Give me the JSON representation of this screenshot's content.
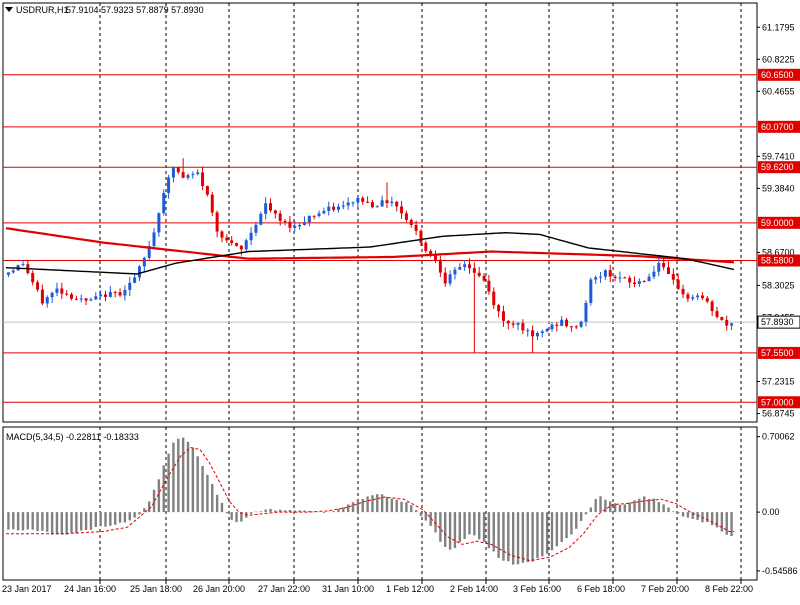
{
  "header": {
    "symbol": "USDRUR,H1",
    "ohlc": "57.9104 57.9323 57.8879 57.8930"
  },
  "chart_data": {
    "type": "candlestick",
    "symbol": "USDRUR",
    "timeframe": "H1",
    "ohlc_last": {
      "open": 57.9104,
      "high": 57.9323,
      "low": 57.8879,
      "close": 57.893
    },
    "price_axis": {
      "ylim": [
        56.78,
        61.45
      ],
      "ticks": [
        "61.1795",
        "60.8225",
        "60.4655",
        "59.7410",
        "59.3840",
        "58.6700",
        "58.3025",
        "57.9455",
        "57.2315",
        "56.8745"
      ]
    },
    "level_lines": [
      {
        "label": "60.6500",
        "value": 60.65
      },
      {
        "label": "60.0700",
        "value": 60.07
      },
      {
        "label": "59.6200",
        "value": 59.62
      },
      {
        "label": "59.0000",
        "value": 59.0
      },
      {
        "label": "58.5800",
        "value": 58.58
      },
      {
        "label": "57.5500",
        "value": 57.55
      },
      {
        "label": "57.0000",
        "value": 57.0
      }
    ],
    "current_price_label": "57.8930",
    "current_price": 57.893,
    "time_labels": [
      "23 Jan 2017",
      "24 Jan 16:00",
      "25 Jan 18:00",
      "26 Jan 20:00",
      "27 Jan 22:00",
      "31 Jan 10:00",
      "1 Feb 12:00",
      "2 Feb 14:00",
      "3 Feb 16:00",
      "6 Feb 18:00",
      "7 Feb 20:00",
      "8 Feb 22:00"
    ],
    "price_path": [
      [
        0,
        58.42
      ],
      [
        4,
        58.55
      ],
      [
        8,
        58.12
      ],
      [
        11,
        58.26
      ],
      [
        14,
        58.18
      ],
      [
        17,
        58.12
      ],
      [
        21,
        58.2
      ],
      [
        24,
        58.22
      ],
      [
        27,
        58.38
      ],
      [
        29,
        58.6
      ],
      [
        31,
        58.9
      ],
      [
        33,
        59.35
      ],
      [
        35,
        59.62
      ],
      [
        37,
        59.5
      ],
      [
        40,
        59.55
      ],
      [
        42,
        59.3
      ],
      [
        44,
        58.92
      ],
      [
        47,
        58.75
      ],
      [
        49,
        58.7
      ],
      [
        51,
        58.9
      ],
      [
        54,
        59.2
      ],
      [
        57,
        59.02
      ],
      [
        60,
        58.95
      ],
      [
        63,
        59.07
      ],
      [
        67,
        59.15
      ],
      [
        70,
        59.18
      ],
      [
        73,
        59.27
      ],
      [
        76,
        59.2
      ],
      [
        80,
        59.25
      ],
      [
        83,
        59.05
      ],
      [
        85,
        58.9
      ],
      [
        87,
        58.7
      ],
      [
        89,
        58.6
      ],
      [
        91,
        58.35
      ],
      [
        93,
        58.45
      ],
      [
        95,
        58.55
      ],
      [
        97,
        58.45
      ],
      [
        99,
        58.35
      ],
      [
        101,
        58.1
      ],
      [
        103,
        57.9
      ],
      [
        106,
        57.88
      ],
      [
        109,
        57.72
      ],
      [
        112,
        57.82
      ],
      [
        115,
        57.9
      ],
      [
        117,
        57.82
      ],
      [
        119,
        57.9
      ],
      [
        121,
        58.35
      ],
      [
        124,
        58.45
      ],
      [
        127,
        58.38
      ],
      [
        130,
        58.32
      ],
      [
        133,
        58.4
      ],
      [
        135,
        58.55
      ],
      [
        137,
        58.4
      ],
      [
        139,
        58.28
      ],
      [
        141,
        58.15
      ],
      [
        143,
        58.2
      ],
      [
        145,
        58.1
      ],
      [
        147,
        57.95
      ],
      [
        149,
        57.85
      ],
      [
        150,
        57.89
      ]
    ],
    "total_bars": 150,
    "spikes": [
      {
        "bar": 96,
        "low": 57.55
      },
      {
        "bar": 108,
        "low": 57.55
      },
      {
        "bar": 36,
        "high": 59.72
      },
      {
        "bar": 78,
        "high": 59.45
      }
    ],
    "indicators": [
      {
        "name": "slow-ma",
        "color": "#e00000",
        "path": [
          [
            0,
            58.94
          ],
          [
            20,
            58.78
          ],
          [
            50,
            58.6
          ],
          [
            80,
            58.62
          ],
          [
            100,
            58.68
          ],
          [
            130,
            58.63
          ],
          [
            150,
            58.56
          ]
        ]
      },
      {
        "name": "fast-ma",
        "color": "#000000",
        "path": [
          [
            0,
            58.5
          ],
          [
            27,
            58.43
          ],
          [
            35,
            58.55
          ],
          [
            50,
            58.68
          ],
          [
            75,
            58.73
          ],
          [
            90,
            58.85
          ],
          [
            103,
            58.89
          ],
          [
            110,
            58.87
          ],
          [
            120,
            58.72
          ],
          [
            130,
            58.66
          ],
          [
            140,
            58.6
          ],
          [
            150,
            58.48
          ]
        ]
      }
    ],
    "macd": {
      "label": "MACD(5,34,5) -0.22811 -0.18333",
      "ylim": [
        -0.63,
        0.79
      ],
      "ticks": [
        "0.70062",
        "0.00",
        "-0.54586"
      ],
      "hist_path": [
        [
          0,
          -0.16
        ],
        [
          6,
          -0.17
        ],
        [
          12,
          -0.22
        ],
        [
          18,
          -0.15
        ],
        [
          24,
          -0.1
        ],
        [
          27,
          -0.04
        ],
        [
          29,
          0.05
        ],
        [
          31,
          0.25
        ],
        [
          33,
          0.5
        ],
        [
          35,
          0.68
        ],
        [
          37,
          0.7
        ],
        [
          39,
          0.55
        ],
        [
          42,
          0.3
        ],
        [
          44,
          0.12
        ],
        [
          46,
          -0.05
        ],
        [
          48,
          -0.12
        ],
        [
          50,
          -0.02
        ],
        [
          54,
          0.03
        ],
        [
          58,
          0.01
        ],
        [
          62,
          0.02
        ],
        [
          66,
          -0.01
        ],
        [
          70,
          0.06
        ],
        [
          74,
          0.14
        ],
        [
          77,
          0.18
        ],
        [
          80,
          0.12
        ],
        [
          83,
          0.08
        ],
        [
          86,
          -0.05
        ],
        [
          88,
          -0.15
        ],
        [
          90,
          -0.32
        ],
        [
          92,
          -0.37
        ],
        [
          94,
          -0.26
        ],
        [
          96,
          -0.2
        ],
        [
          98,
          -0.26
        ],
        [
          100,
          -0.35
        ],
        [
          102,
          -0.44
        ],
        [
          105,
          -0.49
        ],
        [
          108,
          -0.46
        ],
        [
          111,
          -0.4
        ],
        [
          114,
          -0.3
        ],
        [
          117,
          -0.2
        ],
        [
          120,
          0.02
        ],
        [
          122,
          0.15
        ],
        [
          124,
          0.1
        ],
        [
          126,
          0.08
        ],
        [
          128,
          0.07
        ],
        [
          131,
          0.14
        ],
        [
          134,
          0.12
        ],
        [
          137,
          0.02
        ],
        [
          140,
          -0.05
        ],
        [
          143,
          -0.08
        ],
        [
          146,
          -0.12
        ],
        [
          149,
          -0.22
        ]
      ],
      "signal_path": [
        [
          0,
          -0.2
        ],
        [
          12,
          -0.2
        ],
        [
          20,
          -0.18
        ],
        [
          25,
          -0.14
        ],
        [
          30,
          0.05
        ],
        [
          33,
          0.3
        ],
        [
          36,
          0.52
        ],
        [
          38,
          0.6
        ],
        [
          40,
          0.58
        ],
        [
          42,
          0.45
        ],
        [
          44,
          0.28
        ],
        [
          46,
          0.1
        ],
        [
          48,
          0.0
        ],
        [
          50,
          -0.03
        ],
        [
          56,
          0.0
        ],
        [
          62,
          0.0
        ],
        [
          66,
          0.01
        ],
        [
          70,
          0.04
        ],
        [
          74,
          0.1
        ],
        [
          78,
          0.14
        ],
        [
          82,
          0.12
        ],
        [
          86,
          0.02
        ],
        [
          88,
          -0.08
        ],
        [
          91,
          -0.23
        ],
        [
          94,
          -0.3
        ],
        [
          97,
          -0.27
        ],
        [
          100,
          -0.3
        ],
        [
          104,
          -0.4
        ],
        [
          108,
          -0.45
        ],
        [
          112,
          -0.42
        ],
        [
          116,
          -0.33
        ],
        [
          119,
          -0.2
        ],
        [
          122,
          -0.02
        ],
        [
          125,
          0.07
        ],
        [
          128,
          0.08
        ],
        [
          131,
          0.1
        ],
        [
          135,
          0.12
        ],
        [
          138,
          0.08
        ],
        [
          141,
          0.0
        ],
        [
          145,
          -0.08
        ],
        [
          149,
          -0.18
        ]
      ]
    }
  }
}
